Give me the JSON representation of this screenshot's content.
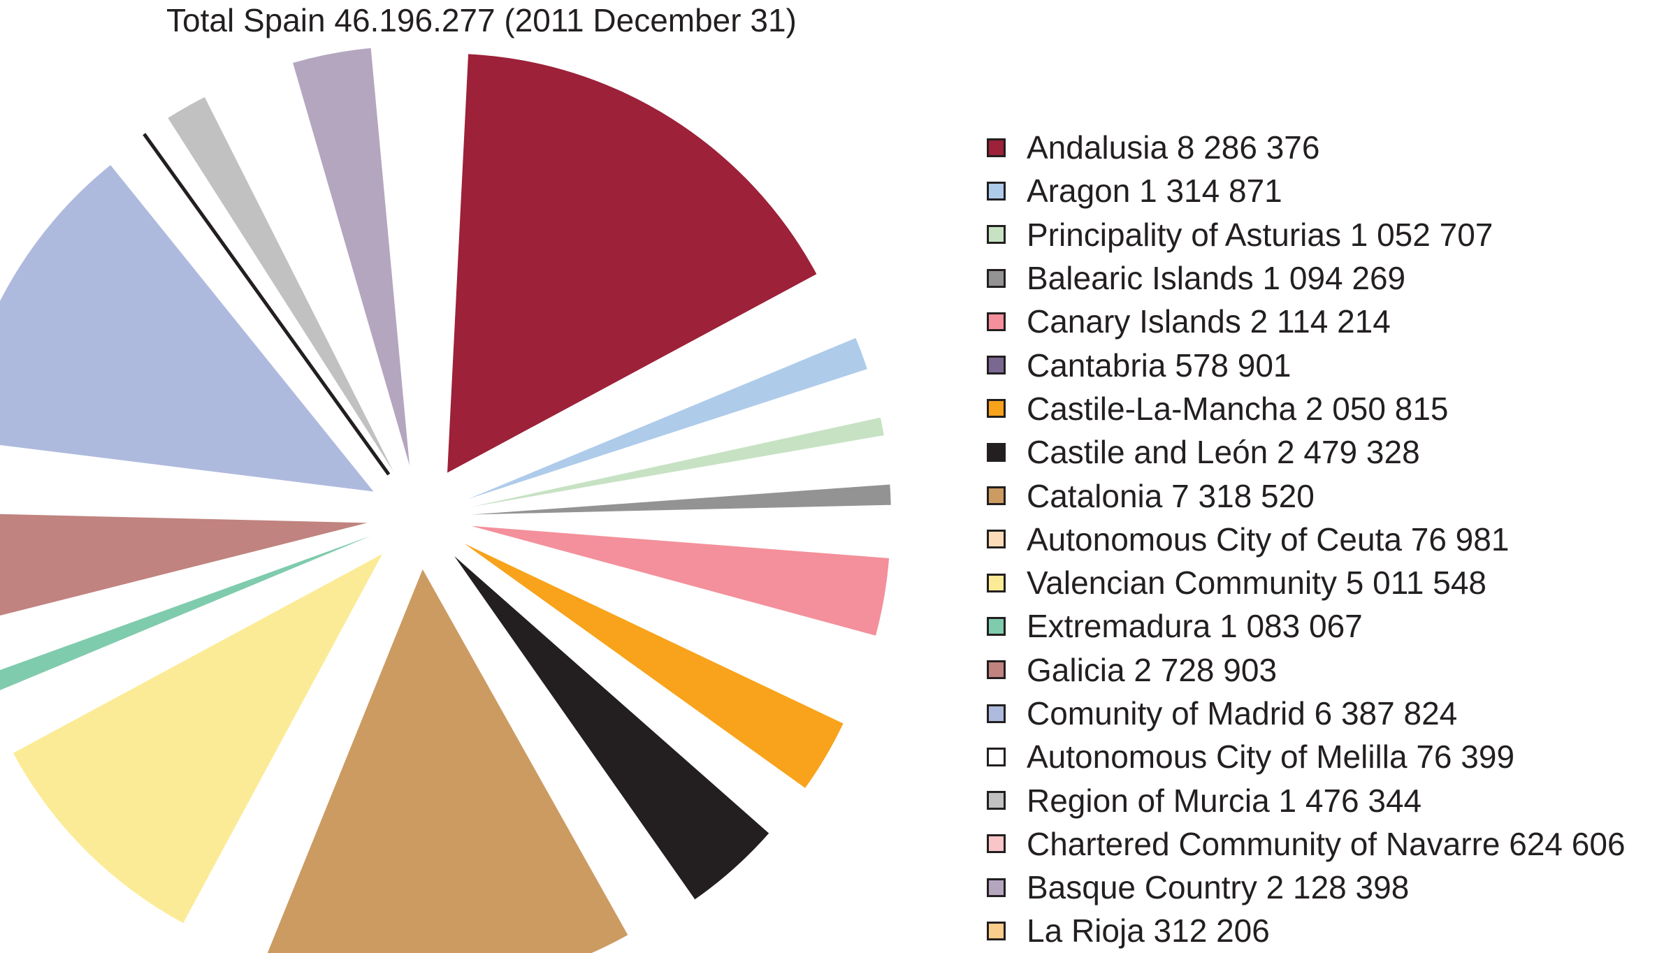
{
  "chart_data": {
    "type": "pie",
    "title": "Total Spain 46.196.277 (2011 December 31)",
    "legend_position": "right",
    "slices": [
      {
        "name": "Andalusia",
        "value_label": "8 286 376",
        "value": 8286376,
        "color": "#9c2139"
      },
      {
        "name": "Aragon",
        "value_label": "1 314 871",
        "value": 1314871,
        "color": "#aecbea"
      },
      {
        "name": "Principality of Asturias",
        "value_label": "1 052 707",
        "value": 1052707,
        "color": "#c6e2c3"
      },
      {
        "name": "Balearic Islands",
        "value_label": "1 094 269",
        "value": 1094269,
        "color": "#939393"
      },
      {
        "name": "Canary Islands",
        "value_label": "2 114 214",
        "value": 2114214,
        "color": "#f3909b"
      },
      {
        "name": "Cantabria",
        "value_label": "578 901",
        "value": 578901,
        "color": "#7b6891"
      },
      {
        "name": "Castile-La-Mancha",
        "value_label": "2 050 815",
        "value": 2050815,
        "color": "#f8a31b"
      },
      {
        "name": "Castile and León",
        "value_label": "2 479 328",
        "value": 2479328,
        "color": "#231f20"
      },
      {
        "name": "Catalonia",
        "value_label": "7 318 520",
        "value": 7318520,
        "color": "#cc9b62"
      },
      {
        "name": "Autonomous City of Ceuta",
        "value_label": "76 981",
        "value": 76981,
        "color": "#fcdcb8"
      },
      {
        "name": "Valencian Community",
        "value_label": "5 011 548",
        "value": 5011548,
        "color": "#fbeb96"
      },
      {
        "name": "Extremadura",
        "value_label": "1 083 067",
        "value": 1083067,
        "color": "#7fcbad"
      },
      {
        "name": "Galicia",
        "value_label": "2 728 903",
        "value": 2728903,
        "color": "#c0837f"
      },
      {
        "name": "Comunity of Madrid",
        "value_label": "6 387 824",
        "value": 6387824,
        "color": "#aebadd"
      },
      {
        "name": "Autonomous City of Melilla",
        "value_label": "76 399",
        "value": 76399,
        "color": "#ffffff"
      },
      {
        "name": "Region of Murcia",
        "value_label": "1 476 344",
        "value": 1476344,
        "color": "#c1c1c1"
      },
      {
        "name": "Chartered Community of Navarre",
        "value_label": "624 606",
        "value": 624606,
        "color": "#f8c5c9"
      },
      {
        "name": "Basque Country",
        "value_label": "2 128 398",
        "value": 2128398,
        "color": "#b4a6bf"
      },
      {
        "name": "La Rioja",
        "value_label": "312 206",
        "value": 312206,
        "color": "#fbcd8c"
      }
    ]
  }
}
